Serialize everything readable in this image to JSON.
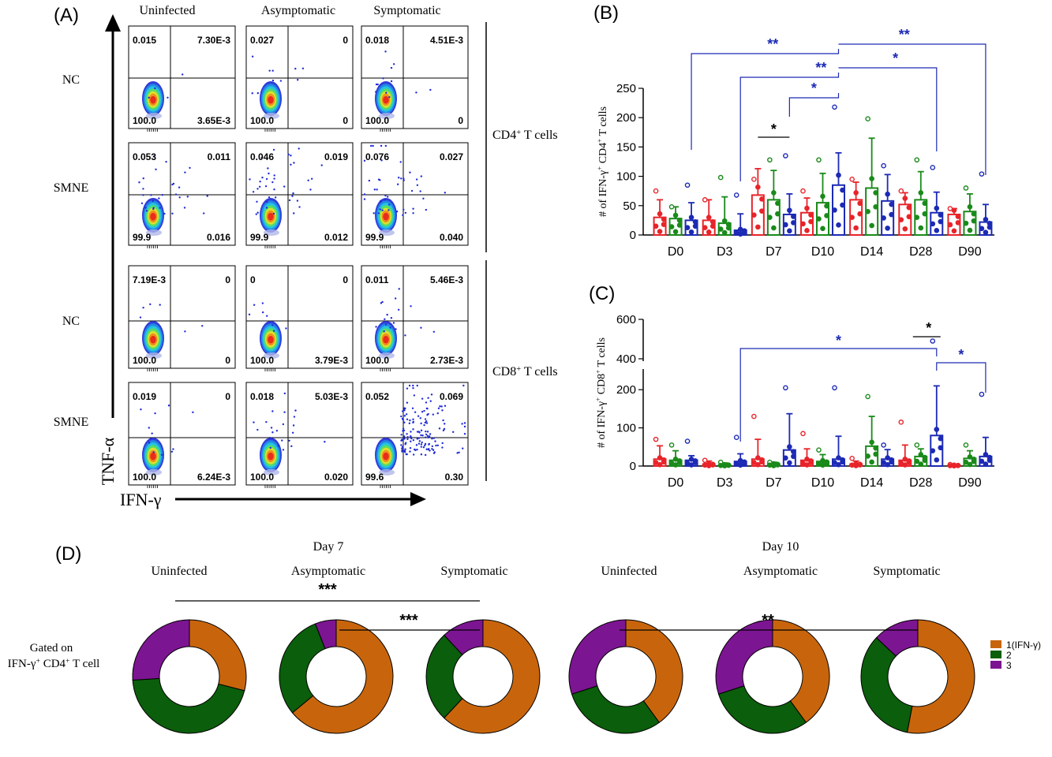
{
  "panel_a": {
    "letter": "(A)",
    "columns": [
      "Uninfected",
      "Asymptomatic",
      "Symptomatic"
    ],
    "rows": [
      "NC",
      "SMNE",
      "NC",
      "SMNE"
    ],
    "cell_types": [
      "CD4",
      "CD8"
    ],
    "cell_type_suffix": " T cells",
    "cell_type_sup": "+",
    "y_axis_label": "TNF-α",
    "x_axis_label": "IFN-γ",
    "quadrants": [
      [
        {
          "ul": "0.015",
          "ur": "7.30E-3",
          "ll": "100.0",
          "lr": "3.65E-3"
        },
        {
          "ul": "0.027",
          "ur": "0",
          "ll": "100.0",
          "lr": "0"
        },
        {
          "ul": "0.018",
          "ur": "4.51E-3",
          "ll": "100.0",
          "lr": "0"
        }
      ],
      [
        {
          "ul": "0.053",
          "ur": "0.011",
          "ll": "99.9",
          "lr": "0.016"
        },
        {
          "ul": "0.046",
          "ur": "0.019",
          "ll": "99.9",
          "lr": "0.012"
        },
        {
          "ul": "0.076",
          "ur": "0.027",
          "ll": "99.9",
          "lr": "0.040"
        }
      ],
      [
        {
          "ul": "7.19E-3",
          "ur": "0",
          "ll": "100.0",
          "lr": "0"
        },
        {
          "ul": "0",
          "ur": "0",
          "ll": "100.0",
          "lr": "3.79E-3"
        },
        {
          "ul": "0.011",
          "ur": "5.46E-3",
          "ll": "100.0",
          "lr": "2.73E-3"
        }
      ],
      [
        {
          "ul": "0.019",
          "ur": "0",
          "ll": "100.0",
          "lr": "6.24E-3"
        },
        {
          "ul": "0.018",
          "ur": "5.03E-3",
          "ll": "100.0",
          "lr": "0.020"
        },
        {
          "ul": "0.052",
          "ur": "0.069",
          "ll": "99.6",
          "lr": "0.30"
        }
      ]
    ],
    "dot_color": "#1f2bd6"
  },
  "chart_data": [
    {
      "panel": "(B)",
      "type": "bar",
      "ylabel_parts": [
        "# of IFN-γ",
        "+",
        " CD4",
        "+",
        " T cells"
      ],
      "categories": [
        "D0",
        "D3",
        "D7",
        "D10",
        "D14",
        "D28",
        "D90"
      ],
      "ylim": [
        0,
        250
      ],
      "yticks": [
        0,
        50,
        100,
        150,
        200,
        250
      ],
      "series": [
        {
          "color": "#e8242a",
          "values": [
            30,
            25,
            68,
            38,
            60,
            52,
            35
          ],
          "errors": [
            30,
            35,
            45,
            25,
            30,
            20,
            10
          ],
          "maxima": [
            75,
            60,
            95,
            75,
            95,
            75,
            45
          ]
        },
        {
          "color": "#1a8a1a",
          "values": [
            28,
            20,
            60,
            55,
            80,
            60,
            40
          ],
          "errors": [
            20,
            45,
            50,
            50,
            85,
            48,
            30
          ],
          "maxima": [
            48,
            98,
            128,
            128,
            198,
            128,
            80
          ]
        },
        {
          "color": "#1c2ab5",
          "values": [
            25,
            8,
            35,
            85,
            58,
            38,
            22
          ],
          "errors": [
            30,
            28,
            35,
            55,
            45,
            35,
            30
          ],
          "maxima": [
            85,
            68,
            135,
            218,
            118,
            115,
            104
          ]
        }
      ],
      "significance": [
        {
          "label": "*",
          "color": "#000000"
        },
        {
          "label": "*",
          "color": "#1c2ab5"
        },
        {
          "label": "**",
          "color": "#1c2ab5"
        },
        {
          "label": "**",
          "color": "#1c2ab5"
        },
        {
          "label": "*",
          "color": "#1c2ab5"
        },
        {
          "label": "**",
          "color": "#1c2ab5"
        }
      ]
    },
    {
      "panel": "(C)",
      "type": "bar",
      "ylabel_parts": [
        "# of IFN-γ",
        "+",
        " CD8",
        "+",
        " T cells"
      ],
      "categories": [
        "D0",
        "D3",
        "D7",
        "D10",
        "D14",
        "D28",
        "D90"
      ],
      "ylim": [
        0,
        600
      ],
      "axis_break": [
        250,
        400
      ],
      "yticks": [
        0,
        100,
        200,
        400,
        600
      ],
      "series": [
        {
          "color": "#e8242a",
          "values": [
            18,
            5,
            18,
            15,
            5,
            15,
            2
          ],
          "errors": [
            35,
            8,
            52,
            30,
            8,
            40,
            2
          ],
          "maxima": [
            70,
            15,
            130,
            85,
            20,
            115,
            4
          ]
        },
        {
          "color": "#1a8a1a",
          "values": [
            15,
            3,
            5,
            12,
            52,
            25,
            20
          ],
          "errors": [
            25,
            5,
            5,
            18,
            78,
            20,
            20
          ],
          "maxima": [
            55,
            10,
            10,
            42,
            182,
            55,
            55
          ]
        },
        {
          "color": "#1c2ab5",
          "values": [
            15,
            12,
            42,
            18,
            18,
            80,
            25
          ],
          "errors": [
            12,
            20,
            95,
            60,
            25,
            130,
            50
          ],
          "maxima": [
            65,
            75,
            205,
            205,
            55,
            490,
            188
          ]
        }
      ],
      "significance": [
        {
          "label": "*",
          "color": "#1c2ab5"
        },
        {
          "label": "*",
          "color": "#000000"
        },
        {
          "label": "*",
          "color": "#1c2ab5"
        }
      ]
    },
    {
      "panel": "(D)",
      "type": "pie",
      "groups": [
        {
          "title": "Day 7",
          "labels": [
            "Uninfected",
            "Asymptomatic",
            "Symptomatic"
          ],
          "donuts": [
            [
              29,
              45,
              26
            ],
            [
              64,
              30,
              6
            ],
            [
              62,
              26,
              12
            ]
          ],
          "significance": [
            {
              "label": "***"
            },
            {
              "label": "***"
            }
          ]
        },
        {
          "title": "Day 10",
          "labels": [
            "Uninfected",
            "Asymptomatic",
            "Symptomatic"
          ],
          "donuts": [
            [
              40,
              30,
              30
            ],
            [
              40,
              30,
              30
            ],
            [
              53,
              34,
              13
            ]
          ],
          "significance": [
            {
              "label": "**"
            }
          ]
        }
      ],
      "gate_label": [
        "Gated on",
        "IFN-γ",
        "+",
        " CD4",
        "+",
        " T cell"
      ],
      "legend": [
        {
          "label": "1(IFN-γ)",
          "color": "#c8650c"
        },
        {
          "label": "2",
          "color": "#0b5e0b"
        },
        {
          "label": "3",
          "color": "#7c1591"
        }
      ]
    }
  ]
}
